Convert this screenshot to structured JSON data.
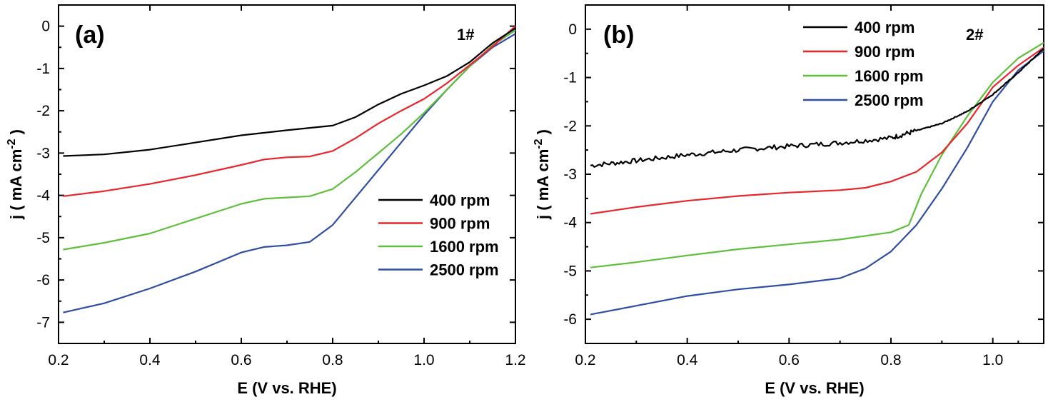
{
  "chart_data": [
    {
      "type": "line",
      "panel_label": "(a)",
      "sample_label": "1#",
      "xlabel": "E (V vs. RHE)",
      "ylabel_main": "j ( mA cm",
      "ylabel_sup": "-2",
      "ylabel_end": ")",
      "xlim": [
        0.2,
        1.2
      ],
      "ylim": [
        -7.5,
        0.5
      ],
      "xticks": [
        0.2,
        0.4,
        0.6,
        0.8,
        1.0,
        1.2
      ],
      "xtick_labels": [
        "0.2",
        "0.4",
        "0.6",
        "0.8",
        "1.0",
        "1.2"
      ],
      "yticks": [
        0,
        -1,
        -2,
        -3,
        -4,
        -5,
        -6,
        -7
      ],
      "ytick_labels": [
        "0",
        "-1",
        "-2",
        "-3",
        "-4",
        "-5",
        "-6",
        "-7"
      ],
      "legend_position": "center-right",
      "series": [
        {
          "name": "400 rpm",
          "color": "#000000",
          "x": [
            0.21,
            0.3,
            0.4,
            0.5,
            0.6,
            0.7,
            0.8,
            0.85,
            0.9,
            0.95,
            1.0,
            1.05,
            1.1,
            1.15,
            1.2
          ],
          "y": [
            -3.07,
            -3.03,
            -2.92,
            -2.75,
            -2.58,
            -2.46,
            -2.35,
            -2.15,
            -1.85,
            -1.6,
            -1.4,
            -1.18,
            -0.85,
            -0.4,
            -0.05
          ]
        },
        {
          "name": "900 rpm",
          "color": "#e8262b",
          "x": [
            0.21,
            0.3,
            0.4,
            0.5,
            0.6,
            0.65,
            0.7,
            0.75,
            0.8,
            0.85,
            0.9,
            0.95,
            1.0,
            1.05,
            1.1,
            1.15,
            1.2
          ],
          "y": [
            -4.02,
            -3.9,
            -3.73,
            -3.52,
            -3.28,
            -3.15,
            -3.1,
            -3.08,
            -2.95,
            -2.65,
            -2.3,
            -2.0,
            -1.72,
            -1.35,
            -0.92,
            -0.48,
            0.0
          ]
        },
        {
          "name": "1600 rpm",
          "color": "#5fbf3d",
          "x": [
            0.21,
            0.3,
            0.4,
            0.5,
            0.6,
            0.65,
            0.7,
            0.75,
            0.8,
            0.85,
            0.9,
            0.95,
            1.0,
            1.05,
            1.1,
            1.15,
            1.2
          ],
          "y": [
            -5.28,
            -5.12,
            -4.9,
            -4.55,
            -4.2,
            -4.08,
            -4.05,
            -4.02,
            -3.85,
            -3.45,
            -3.0,
            -2.55,
            -2.05,
            -1.5,
            -0.95,
            -0.45,
            -0.1
          ]
        },
        {
          "name": "2500 rpm",
          "color": "#2f4ea3",
          "x": [
            0.21,
            0.3,
            0.4,
            0.5,
            0.6,
            0.65,
            0.7,
            0.75,
            0.8,
            0.85,
            0.9,
            0.95,
            1.0,
            1.05,
            1.1,
            1.15,
            1.2
          ],
          "y": [
            -6.77,
            -6.55,
            -6.2,
            -5.8,
            -5.35,
            -5.22,
            -5.18,
            -5.1,
            -4.7,
            -4.05,
            -3.4,
            -2.75,
            -2.1,
            -1.5,
            -0.95,
            -0.5,
            -0.18
          ]
        }
      ]
    },
    {
      "type": "line",
      "panel_label": "(b)",
      "sample_label": "2#",
      "xlabel": "E (V vs. RHE)",
      "ylabel_main": "j ( mA cm",
      "ylabel_sup": "-2",
      "ylabel_end": ")",
      "xlim": [
        0.2,
        1.1
      ],
      "ylim": [
        -6.5,
        0.5
      ],
      "xticks": [
        0.2,
        0.4,
        0.6,
        0.8,
        1.0
      ],
      "xtick_labels": [
        "0.2",
        "0.4",
        "0.6",
        "0.8",
        "1.0"
      ],
      "yticks": [
        0,
        -1,
        -2,
        -3,
        -4,
        -5,
        -6
      ],
      "ytick_labels": [
        "0",
        "-1",
        "-2",
        "-3",
        "-4",
        "-5",
        "-6"
      ],
      "legend_position": "top-center",
      "series": [
        {
          "name": "400 rpm",
          "color": "#000000",
          "noisy": true,
          "x": [
            0.21,
            0.3,
            0.4,
            0.5,
            0.6,
            0.7,
            0.8,
            0.85,
            0.9,
            0.95,
            1.0,
            1.05,
            1.1
          ],
          "y": [
            -2.82,
            -2.72,
            -2.6,
            -2.5,
            -2.42,
            -2.35,
            -2.25,
            -2.1,
            -1.95,
            -1.7,
            -1.35,
            -0.9,
            -0.4
          ]
        },
        {
          "name": "900 rpm",
          "color": "#e8262b",
          "x": [
            0.21,
            0.3,
            0.4,
            0.5,
            0.6,
            0.7,
            0.75,
            0.8,
            0.85,
            0.9,
            0.95,
            1.0,
            1.05,
            1.1
          ],
          "y": [
            -3.82,
            -3.68,
            -3.55,
            -3.45,
            -3.38,
            -3.33,
            -3.28,
            -3.15,
            -2.95,
            -2.55,
            -1.95,
            -1.2,
            -0.75,
            -0.38
          ]
        },
        {
          "name": "1600 rpm",
          "color": "#5fbf3d",
          "x": [
            0.21,
            0.3,
            0.4,
            0.5,
            0.6,
            0.7,
            0.8,
            0.835,
            0.86,
            0.9,
            0.95,
            1.0,
            1.05,
            1.1
          ],
          "y": [
            -4.93,
            -4.82,
            -4.68,
            -4.55,
            -4.45,
            -4.35,
            -4.2,
            -4.05,
            -3.4,
            -2.6,
            -1.8,
            -1.1,
            -0.6,
            -0.28
          ]
        },
        {
          "name": "2500 rpm",
          "color": "#2f4ea3",
          "x": [
            0.21,
            0.3,
            0.4,
            0.5,
            0.6,
            0.7,
            0.75,
            0.8,
            0.85,
            0.9,
            0.95,
            1.0,
            1.05,
            1.1
          ],
          "y": [
            -5.9,
            -5.72,
            -5.52,
            -5.38,
            -5.28,
            -5.15,
            -4.95,
            -4.6,
            -4.05,
            -3.3,
            -2.45,
            -1.5,
            -0.85,
            -0.45
          ]
        }
      ]
    }
  ]
}
